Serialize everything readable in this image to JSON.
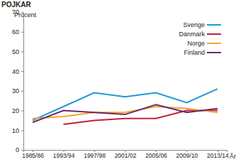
{
  "chart_data": {
    "type": "line",
    "title": "POJKAR",
    "y_label": "Procent",
    "x_label": "År",
    "categories": [
      "1985/86",
      "1993/94",
      "1997/98",
      "2001/02",
      "2005/06",
      "2009/10",
      "2013/14"
    ],
    "series": [
      {
        "name": "Sverige",
        "color": "#1f9ad6",
        "values": [
          15,
          22,
          29,
          27,
          29,
          24,
          31
        ]
      },
      {
        "name": "Danmark",
        "color": "#c2203f",
        "values": [
          null,
          13,
          15,
          16,
          16,
          20,
          20
        ]
      },
      {
        "name": "Norge",
        "color": "#f3a530",
        "values": [
          16,
          17,
          19,
          19,
          22,
          21,
          19
        ]
      },
      {
        "name": "Finland",
        "color": "#6b2a6e",
        "values": [
          14,
          20,
          19,
          18,
          23,
          19,
          21
        ]
      }
    ],
    "ylim": [
      0,
      70
    ],
    "yticks": [
      0,
      10,
      20,
      30,
      40,
      50,
      60,
      70
    ],
    "legend": "top-right",
    "grid": false
  }
}
